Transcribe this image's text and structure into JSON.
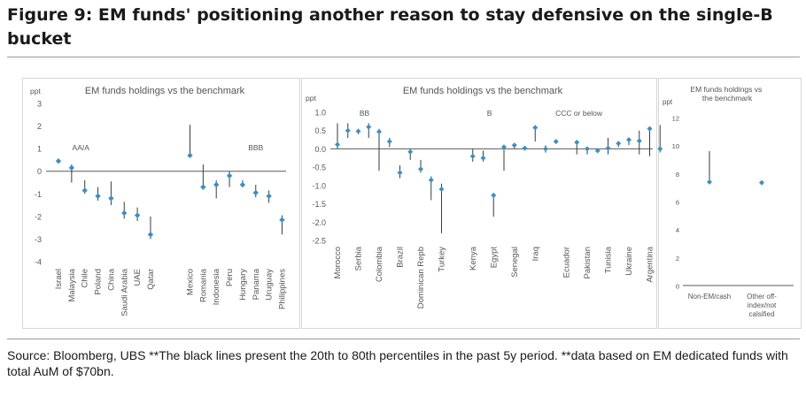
{
  "figure": {
    "title": "Figure 9: EM funds' positioning another reason to stay defensive on the single-B bucket",
    "source": "Source: Bloomberg, UBS **The black lines present the 20th to 80th percentiles in the past 5y period. **data based on EM dedicated funds with total AuM of $70bn."
  },
  "colors": {
    "marker": "#3c8fc2",
    "range": "#3a3a3a",
    "zero": "#5a5a5a",
    "axis": "#8a8a8a"
  },
  "chart_data": [
    {
      "type": "scatter",
      "title": "EM funds holdings vs the benchmark",
      "ylabel": "ppt",
      "ylim": [
        -4,
        3
      ],
      "yticks": [
        3,
        2,
        1,
        0,
        -1,
        -2,
        -3,
        -4
      ],
      "groups": [
        {
          "label": "AA/A",
          "index": 1.7
        },
        {
          "label": "BBB",
          "index": 15.0
        }
      ],
      "categories": [
        "Israel",
        "Malaysia",
        "Chile",
        "Poland",
        "China",
        "Saudi Arabia",
        "UAE",
        "Qatar",
        "Mexico",
        "Romania",
        "Indonesia",
        "Peru",
        "Hungary",
        "Panama",
        "Uruguay",
        "Philippines"
      ],
      "positions": [
        0,
        1,
        2,
        3,
        4,
        5,
        6,
        7,
        10,
        11,
        12,
        13,
        14,
        15,
        16,
        17
      ],
      "values": [
        0.45,
        0.15,
        -0.85,
        -1.1,
        -1.2,
        -1.85,
        -1.95,
        -2.8,
        0.7,
        -0.7,
        -0.6,
        -0.2,
        -0.6,
        -0.95,
        -1.1,
        -2.15
      ],
      "ranges": [
        null,
        [
          -0.5,
          0.3
        ],
        [
          -1.0,
          -0.4
        ],
        [
          -1.3,
          -0.7
        ],
        [
          -1.5,
          -0.45
        ],
        [
          -2.1,
          -1.35
        ],
        [
          -2.2,
          -1.6
        ],
        [
          -3.0,
          -2.0
        ],
        [
          0.7,
          2.05
        ],
        [
          -0.8,
          0.3
        ],
        [
          -1.2,
          -0.4
        ],
        [
          -0.7,
          0.0
        ],
        [
          -0.7,
          -0.4
        ],
        [
          -1.15,
          -0.6
        ],
        [
          -1.4,
          -0.85
        ],
        [
          -2.8,
          -1.95
        ]
      ]
    },
    {
      "type": "scatter",
      "title": "EM funds holdings vs the benchmark",
      "ylabel": "ppt",
      "ylim": [
        -2.5,
        1.0
      ],
      "yticks": [
        "1.0",
        "0.5",
        "0.0",
        "-0.5",
        "-1.0",
        "-1.5",
        "-2.0",
        "-2.5"
      ],
      "groups": [
        {
          "label": "BB",
          "index": 2.6
        },
        {
          "label": "B",
          "index": 14.6
        },
        {
          "label": "CCC or below",
          "index": 23.2
        }
      ],
      "categories": [
        "Morocco",
        "Serbia",
        "Colombia",
        "Brazil",
        "Dominican Repb",
        "Turkey",
        "Kenya",
        "Egypt",
        "Senegal",
        "Iraq",
        "Ecuador",
        "Pakistan",
        "Tunisia",
        "Ukraine",
        "Argentina"
      ],
      "positions": [
        0,
        2,
        4,
        6,
        8,
        10,
        13,
        15,
        17,
        19,
        22,
        24,
        26,
        28,
        30
      ],
      "points": [
        {
          "pos": 0,
          "value": 0.12,
          "range": [
            0.0,
            0.7
          ]
        },
        {
          "pos": 1,
          "value": 0.5,
          "range": [
            0.3,
            0.7
          ]
        },
        {
          "pos": 2,
          "value": 0.48,
          "range": [
            0.4,
            0.55
          ]
        },
        {
          "pos": 3,
          "value": 0.6,
          "range": [
            0.3,
            0.7
          ]
        },
        {
          "pos": 4,
          "value": 0.47,
          "range": [
            -0.6,
            0.55
          ]
        },
        {
          "pos": 5,
          "value": 0.2,
          "range": [
            0.05,
            0.3
          ]
        },
        {
          "pos": 6,
          "value": -0.65,
          "range": [
            -0.8,
            -0.45
          ]
        },
        {
          "pos": 7,
          "value": -0.08,
          "range": [
            -0.3,
            0.0
          ]
        },
        {
          "pos": 8,
          "value": -0.55,
          "range": [
            -0.65,
            -0.3
          ]
        },
        {
          "pos": 9,
          "value": -0.85,
          "range": [
            -1.4,
            -0.75
          ]
        },
        {
          "pos": 10,
          "value": -1.1,
          "range": [
            -2.3,
            -0.95
          ]
        },
        {
          "pos": 13,
          "value": -0.2,
          "range": [
            -0.35,
            0.0
          ]
        },
        {
          "pos": 14,
          "value": -0.25,
          "range": [
            -0.35,
            -0.05
          ]
        },
        {
          "pos": 15,
          "value": -1.27,
          "range": [
            -1.85,
            -1.2
          ]
        },
        {
          "pos": 16,
          "value": 0.05,
          "range": [
            -0.6,
            0.1
          ]
        },
        {
          "pos": 17,
          "value": 0.1,
          "range": [
            0.0,
            0.15
          ]
        },
        {
          "pos": 18,
          "value": 0.02,
          "range": [
            0.0,
            0.05
          ]
        },
        {
          "pos": 19,
          "value": 0.58,
          "range": [
            0.2,
            0.65
          ]
        },
        {
          "pos": 20,
          "value": 0.0,
          "range": [
            -0.1,
            0.1
          ]
        },
        {
          "pos": 21,
          "value": 0.2,
          "range": [
            0.15,
            0.25
          ]
        },
        {
          "pos": 23,
          "value": 0.18,
          "range": [
            -0.15,
            0.22
          ]
        },
        {
          "pos": 24,
          "value": 0.0,
          "range": [
            -0.15,
            0.05
          ]
        },
        {
          "pos": 25,
          "value": -0.05,
          "range": [
            -0.1,
            0.0
          ]
        },
        {
          "pos": 26,
          "value": 0.02,
          "range": [
            -0.15,
            0.3
          ]
        },
        {
          "pos": 27,
          "value": 0.15,
          "range": [
            0.05,
            0.2
          ]
        },
        {
          "pos": 28,
          "value": 0.25,
          "range": [
            0.1,
            0.3
          ]
        },
        {
          "pos": 29,
          "value": 0.22,
          "range": [
            -0.15,
            0.5
          ]
        },
        {
          "pos": 30,
          "value": 0.55,
          "range": [
            -0.2,
            0.6
          ]
        },
        {
          "pos": 31,
          "value": 0.0,
          "range": [
            -0.1,
            0.65
          ]
        }
      ]
    },
    {
      "type": "scatter",
      "title": "EM funds holdings vs the benchmark",
      "ylabel": "ppt",
      "ylim": [
        0,
        12
      ],
      "yticks": [
        12,
        10,
        8,
        6,
        4,
        2,
        0
      ],
      "categories": [
        "Non-EM/cash",
        "Other off-index/not calsified"
      ],
      "category_lines": [
        [
          "Non-EM/cash"
        ],
        [
          "Other off-",
          "index/not",
          "calsified"
        ]
      ],
      "values": [
        7.4,
        7.35
      ],
      "ranges": [
        [
          7.4,
          9.6
        ],
        null
      ]
    }
  ]
}
